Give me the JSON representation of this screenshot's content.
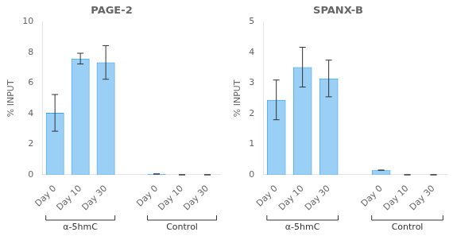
{
  "chart_data": [
    {
      "type": "bar",
      "title": "PAGE-2",
      "ylabel": "% INPUT",
      "categories": [
        "Day 0",
        "Day 10",
        "Day 30",
        null,
        "Day 0",
        "Day 10",
        "Day 30"
      ],
      "values": [
        4.05,
        7.6,
        7.35,
        null,
        0.05,
        0.0,
        0.0
      ],
      "errors": [
        1.2,
        0.35,
        1.1,
        null,
        0.0,
        0.0,
        0.0
      ],
      "annotations": [
        "α-5hmC",
        "Control"
      ],
      "ylim": [
        0,
        10
      ],
      "yticks": [
        0,
        2,
        4,
        6,
        8,
        10
      ],
      "grid": false
    },
    {
      "type": "bar",
      "title": "SPANX-B",
      "ylabel": "% INPUT",
      "categories": [
        "Day 0",
        "Day 10",
        "Day 30",
        null,
        "Day 0",
        "Day 10",
        "Day 30"
      ],
      "values": [
        2.45,
        3.52,
        3.15,
        null,
        0.15,
        0.0,
        0.0
      ],
      "errors": [
        0.65,
        0.65,
        0.6,
        null,
        0.0,
        0.0,
        0.0
      ],
      "annotations": [
        "α-5hmC",
        "Control"
      ],
      "ylim": [
        0,
        5
      ],
      "yticks": [
        0,
        1,
        2,
        3,
        4,
        5
      ],
      "grid": false
    }
  ]
}
